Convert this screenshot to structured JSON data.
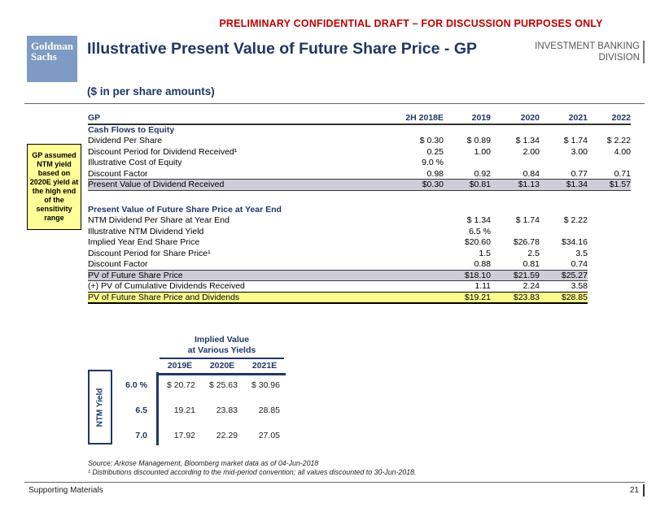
{
  "colors": {
    "navy": "#1f3864",
    "red": "#c00000",
    "logo_blue": "#7d9bc4",
    "gray_highlight": "#cecdd9",
    "yellow_highlight": "#fbfb8e",
    "note_yellow": "#ffff99"
  },
  "banner": {
    "text": "PRELIMINARY CONFIDENTIAL DRAFT – FOR DISCUSSION PURPOSES ONLY"
  },
  "logo": {
    "line1": "Goldman",
    "line2": "Sachs"
  },
  "header": {
    "title": "Illustrative Present Value of Future Share Price - GP",
    "division_line1": "INVESTMENT BANKING",
    "division_line2": "DIVISION",
    "subtitle": "($ in per share amounts)"
  },
  "note": {
    "text": "GP assumed NTM yield based on 2020E yield at the high end  of the sensitivity range"
  },
  "main_table": {
    "columns": [
      "GP",
      "2H 2018E",
      "2019",
      "2020",
      "2021",
      "2022"
    ],
    "rows": [
      {
        "label": "Cash Flows to Equity",
        "type": "section"
      },
      {
        "label": "Dividend Per Share",
        "values": [
          "$ 0.30",
          "$ 0.89",
          "$ 1.34",
          "$ 1.74",
          "$ 2.22"
        ]
      },
      {
        "label": "Discount Period for Dividend Received¹",
        "values": [
          "0.25",
          "1.00",
          "2.00",
          "3.00",
          "4.00"
        ]
      },
      {
        "label": "Illustrative Cost of Equity",
        "values": [
          "9.0 %",
          "",
          "",
          "",
          ""
        ]
      },
      {
        "label": "Discount Factor",
        "values": [
          "0.98",
          "0.92",
          "0.84",
          "0.77",
          "0.71"
        ]
      },
      {
        "label": "Present Value of Dividend Received",
        "values": [
          "$0.30",
          "$0.81",
          "$1.13",
          "$1.34",
          "$1.57"
        ],
        "type": "highlight-gray"
      },
      {
        "label": "Present Value of Future Share Price at Year End",
        "type": "section"
      },
      {
        "label": "NTM Dividend Per Share at Year End",
        "values": [
          "",
          "$ 1.34",
          "$ 1.74",
          "$ 2.22",
          ""
        ]
      },
      {
        "label": "Illustrative NTM Dividend Yield",
        "values": [
          "",
          "6.5 %",
          "",
          "",
          ""
        ]
      },
      {
        "label": "Implied Year End Share Price",
        "values": [
          "",
          "$20.60",
          "$26.78",
          "$34.16",
          ""
        ]
      },
      {
        "label": "Discount Period for Share Price¹",
        "values": [
          "",
          "1.5",
          "2.5",
          "3.5",
          ""
        ]
      },
      {
        "label": "Discount Factor",
        "values": [
          "",
          "0.88",
          "0.81",
          "0.74",
          ""
        ]
      },
      {
        "label": "PV of Future Share Price",
        "values": [
          "",
          "$18.10",
          "$21.59",
          "$25.27",
          ""
        ],
        "type": "highlight-gray-partial"
      },
      {
        "label": "(+) PV of Cumulative Dividends Received",
        "values": [
          "",
          "1.11",
          "2.24",
          "3.58",
          ""
        ]
      },
      {
        "label": "PV of Future Share Price and Dividends",
        "values": [
          "",
          "$19.21",
          "$23.83",
          "$28.85",
          ""
        ],
        "type": "highlight-yellow-partial"
      }
    ]
  },
  "sensitivity_table": {
    "title_line1": "Implied Value",
    "title_line2": "at Various Yields",
    "columns": [
      "2019E",
      "2020E",
      "2021E"
    ],
    "axis_label": "NTM Yield",
    "rows": [
      {
        "label": "6.0 %",
        "values": [
          "$ 20.72",
          "$ 25.63",
          "$ 30.96"
        ]
      },
      {
        "label": "6.5",
        "values": [
          "19.21",
          "23.83",
          "28.85"
        ]
      },
      {
        "label": "7.0",
        "values": [
          "17.92",
          "22.29",
          "27.05"
        ]
      }
    ]
  },
  "footnotes": {
    "source": "Source: Arkose Management, Bloomberg market data as of 04-Jun-2018",
    "footnote1": "¹ Distributions discounted according to the mid-period convention; all values discounted to 30-Jun-2018."
  },
  "footer": {
    "left": "Supporting Materials",
    "page": "21"
  }
}
